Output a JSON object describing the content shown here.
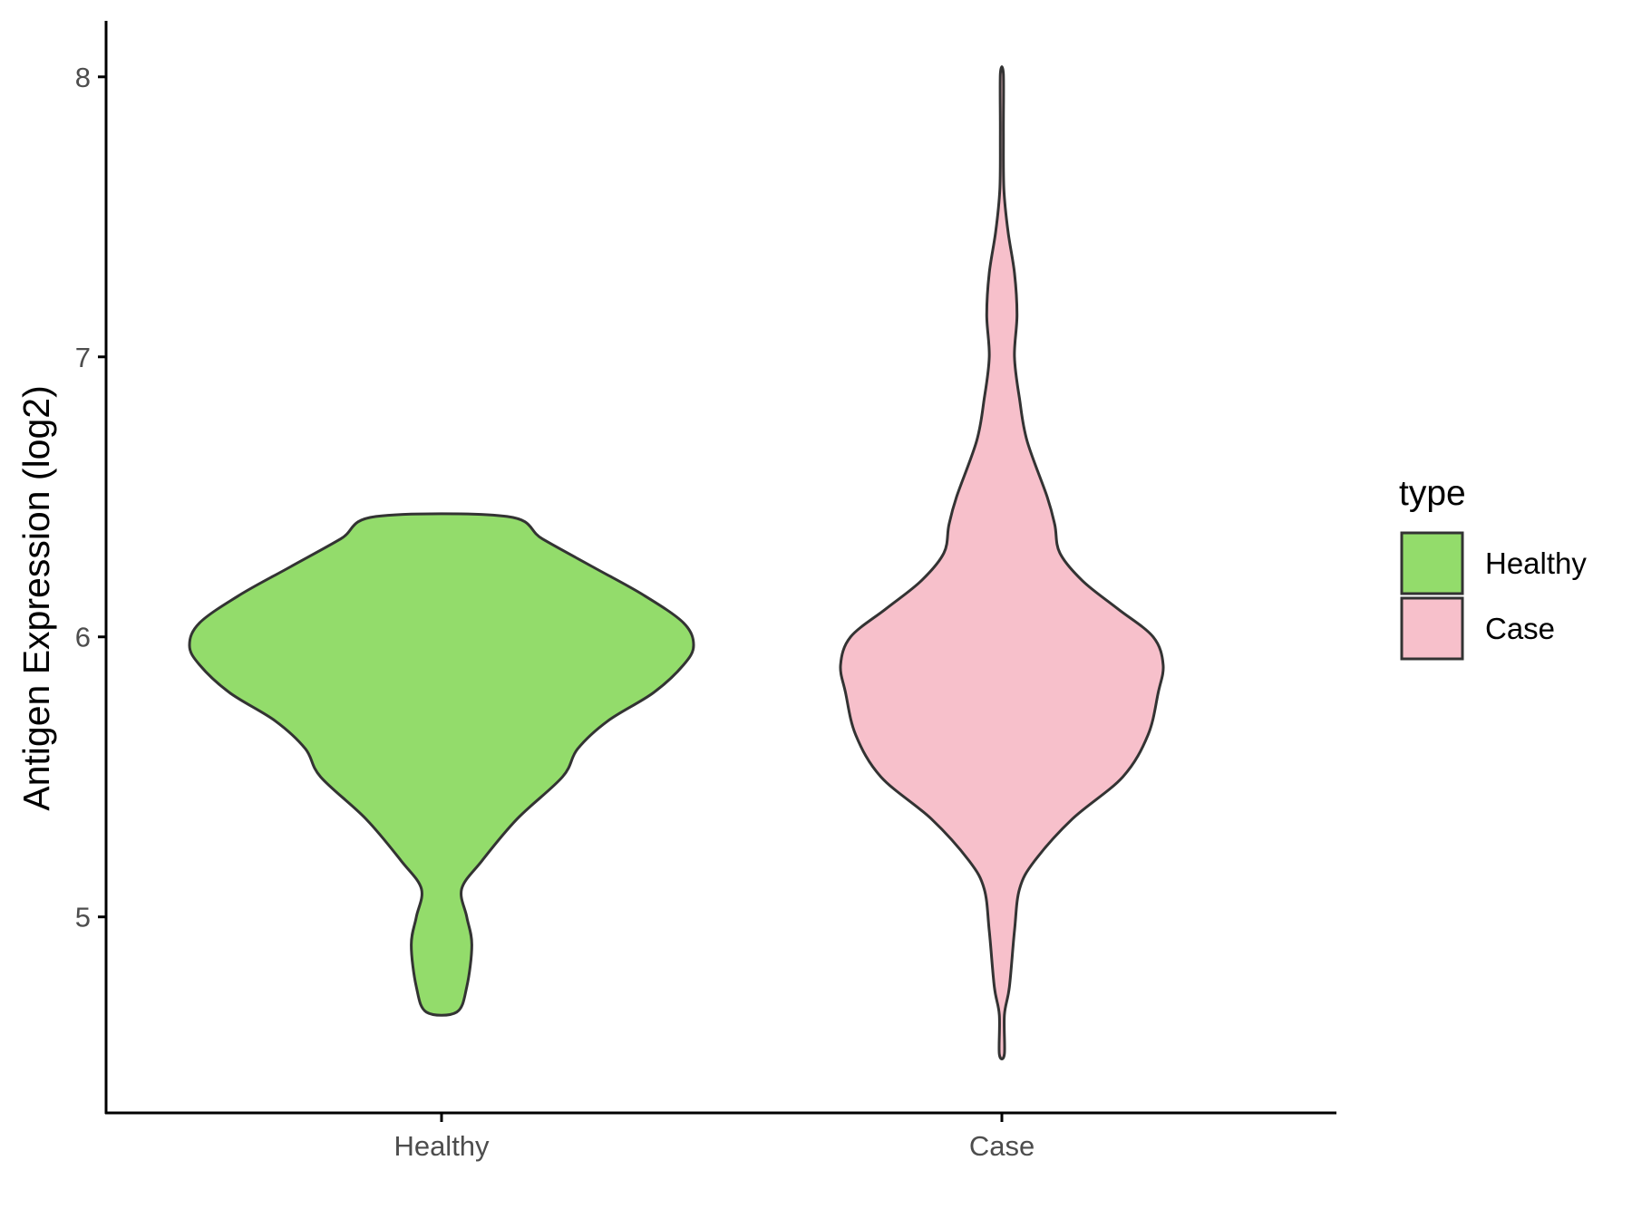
{
  "chart_data": {
    "type": "violin",
    "title": "",
    "xlabel": "",
    "ylabel": "Antigen Expression (log2)",
    "categories": [
      "Healthy",
      "Case"
    ],
    "ylim": [
      4.3,
      8.2
    ],
    "yticks": [
      5,
      6,
      7,
      8
    ],
    "grid": false,
    "legend": {
      "title": "type",
      "position": "right",
      "entries": [
        {
          "label": "Healthy",
          "color": "#93dc6b"
        },
        {
          "label": "Case",
          "color": "#f7c0cb"
        }
      ]
    },
    "series": [
      {
        "name": "Healthy",
        "color": "#93dc6b",
        "outline": "#333333",
        "ymin": 4.66,
        "ymax": 6.43,
        "density_profile": [
          [
            4.66,
            0.03
          ],
          [
            4.75,
            0.05
          ],
          [
            4.9,
            0.06
          ],
          [
            5.0,
            0.05
          ],
          [
            5.1,
            0.04
          ],
          [
            5.2,
            0.08
          ],
          [
            5.35,
            0.15
          ],
          [
            5.5,
            0.24
          ],
          [
            5.6,
            0.27
          ],
          [
            5.7,
            0.33
          ],
          [
            5.8,
            0.42
          ],
          [
            5.9,
            0.48
          ],
          [
            5.97,
            0.5
          ],
          [
            6.05,
            0.48
          ],
          [
            6.15,
            0.4
          ],
          [
            6.25,
            0.3
          ],
          [
            6.35,
            0.2
          ],
          [
            6.43,
            0.13
          ]
        ]
      },
      {
        "name": "Case",
        "color": "#f7c0cb",
        "outline": "#333333",
        "ymin": 4.51,
        "ymax": 8.01,
        "density_profile": [
          [
            4.51,
            0.005
          ],
          [
            4.65,
            0.005
          ],
          [
            4.75,
            0.015
          ],
          [
            4.95,
            0.025
          ],
          [
            5.1,
            0.035
          ],
          [
            5.2,
            0.065
          ],
          [
            5.35,
            0.14
          ],
          [
            5.5,
            0.24
          ],
          [
            5.65,
            0.29
          ],
          [
            5.8,
            0.31
          ],
          [
            5.9,
            0.32
          ],
          [
            6.0,
            0.3
          ],
          [
            6.1,
            0.23
          ],
          [
            6.2,
            0.16
          ],
          [
            6.3,
            0.115
          ],
          [
            6.4,
            0.105
          ],
          [
            6.5,
            0.09
          ],
          [
            6.7,
            0.05
          ],
          [
            6.85,
            0.035
          ],
          [
            7.0,
            0.025
          ],
          [
            7.15,
            0.03
          ],
          [
            7.3,
            0.025
          ],
          [
            7.45,
            0.012
          ],
          [
            7.6,
            0.004
          ],
          [
            7.8,
            0.003
          ],
          [
            8.01,
            0.003
          ]
        ]
      }
    ]
  }
}
